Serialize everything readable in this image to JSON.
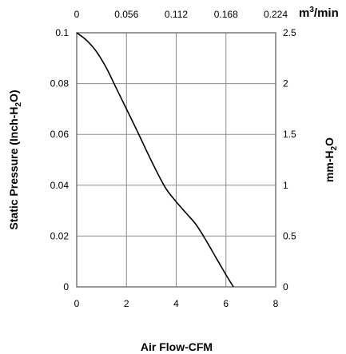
{
  "chart_data": {
    "type": "line",
    "xlabel": "Air Flow-CFM",
    "ylabel": "Static Pressure (Inch-H2O)",
    "ylabel_parts": [
      "Static Pressure (Inch-H",
      "2",
      "O)"
    ],
    "y2label": "mm-H2O",
    "y2label_parts": [
      "mm-H",
      "2",
      "O"
    ],
    "x2label": "m3/min",
    "x2label_parts": [
      "m",
      "3",
      "/min"
    ],
    "xlim": [
      0,
      8
    ],
    "ylim": [
      0,
      0.1
    ],
    "x_ticks": [
      "0",
      "2",
      "4",
      "6",
      "8"
    ],
    "y_ticks": [
      "0",
      "0.02",
      "0.04",
      "0.06",
      "0.08",
      "0.1"
    ],
    "y2_ticks": [
      "0",
      "0.5",
      "1",
      "1.5",
      "2",
      "2.5"
    ],
    "x2_ticks": [
      "0",
      "0.056",
      "0.112",
      "0.168",
      "0.224"
    ],
    "grid": true,
    "series": [
      {
        "x": [
          0,
          0.4,
          0.8,
          1.2,
          1.6,
          2.0,
          2.4,
          2.8,
          3.2,
          3.6,
          4.0,
          4.4,
          4.8,
          5.2,
          5.6,
          6.0,
          6.3
        ],
        "y": [
          0.1,
          0.097,
          0.0925,
          0.086,
          0.078,
          0.07,
          0.062,
          0.0537,
          0.0457,
          0.0385,
          0.0335,
          0.029,
          0.0245,
          0.0183,
          0.0115,
          0.0048,
          0.0
        ]
      }
    ],
    "colors": {
      "line": "#000000",
      "grid": "#8c8c8c"
    }
  }
}
